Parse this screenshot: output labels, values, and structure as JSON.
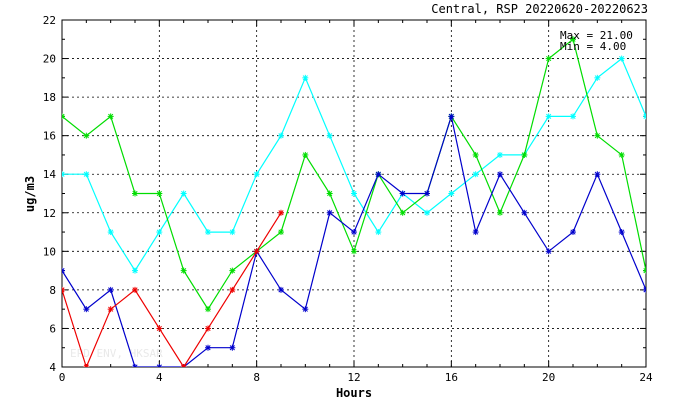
{
  "header": {
    "title": "Central, RSP 20220620-20220623"
  },
  "stats": {
    "max_label": "Max = 21.00",
    "min_label": "Min =  4.00"
  },
  "watermark": "EPD ENV, HKSAR",
  "chart_data": {
    "type": "line",
    "title": "Central, RSP 20220620-20220623",
    "xlabel": "Hours",
    "ylabel": "ug/m3",
    "xlim": [
      0,
      24
    ],
    "ylim": [
      4,
      22
    ],
    "xticks": [
      0,
      4,
      8,
      12,
      16,
      20,
      24
    ],
    "yticks": [
      4,
      6,
      8,
      10,
      12,
      14,
      16,
      18,
      20,
      22
    ],
    "grid": true,
    "marker": "asterisk",
    "series": [
      {
        "color": "#00ffff",
        "x": [
          0,
          1,
          2,
          3,
          4,
          5,
          6,
          7,
          8,
          9,
          10,
          11,
          12,
          13,
          14,
          15,
          16,
          17,
          18,
          19,
          20,
          21,
          22,
          23,
          24
        ],
        "values": [
          14,
          14,
          11,
          9,
          11,
          13,
          11,
          11,
          14,
          16,
          19,
          16,
          13,
          11,
          13,
          12,
          13,
          14,
          15,
          15,
          17,
          17,
          19,
          20,
          17
        ]
      },
      {
        "color": "#00dd00",
        "x": [
          0,
          1,
          2,
          3,
          4,
          5,
          6,
          7,
          8,
          9,
          10,
          11,
          12,
          13,
          14,
          15,
          16,
          17,
          18,
          19,
          20,
          21,
          22,
          23,
          24
        ],
        "values": [
          17,
          16,
          17,
          13,
          13,
          9,
          7,
          9,
          10,
          11,
          15,
          13,
          10,
          14,
          12,
          13,
          17,
          15,
          12,
          15,
          20,
          21,
          16,
          15,
          9
        ]
      },
      {
        "color": "#0000cc",
        "x": [
          0,
          1,
          2,
          3,
          4,
          5,
          6,
          7,
          8,
          9,
          10,
          11,
          12,
          13,
          14,
          15,
          16,
          17,
          18,
          19,
          20,
          21,
          22,
          23,
          24
        ],
        "values": [
          9,
          7,
          8,
          4,
          4,
          4,
          5,
          5,
          10,
          8,
          7,
          12,
          11,
          14,
          13,
          13,
          17,
          11,
          14,
          12,
          10,
          11,
          14,
          11,
          8
        ]
      },
      {
        "color": "#ee0000",
        "x": [
          0,
          1,
          2,
          3,
          4,
          5,
          6,
          7,
          8,
          9
        ],
        "values": [
          8,
          4,
          7,
          8,
          6,
          4,
          6,
          8,
          10,
          12
        ]
      }
    ]
  }
}
